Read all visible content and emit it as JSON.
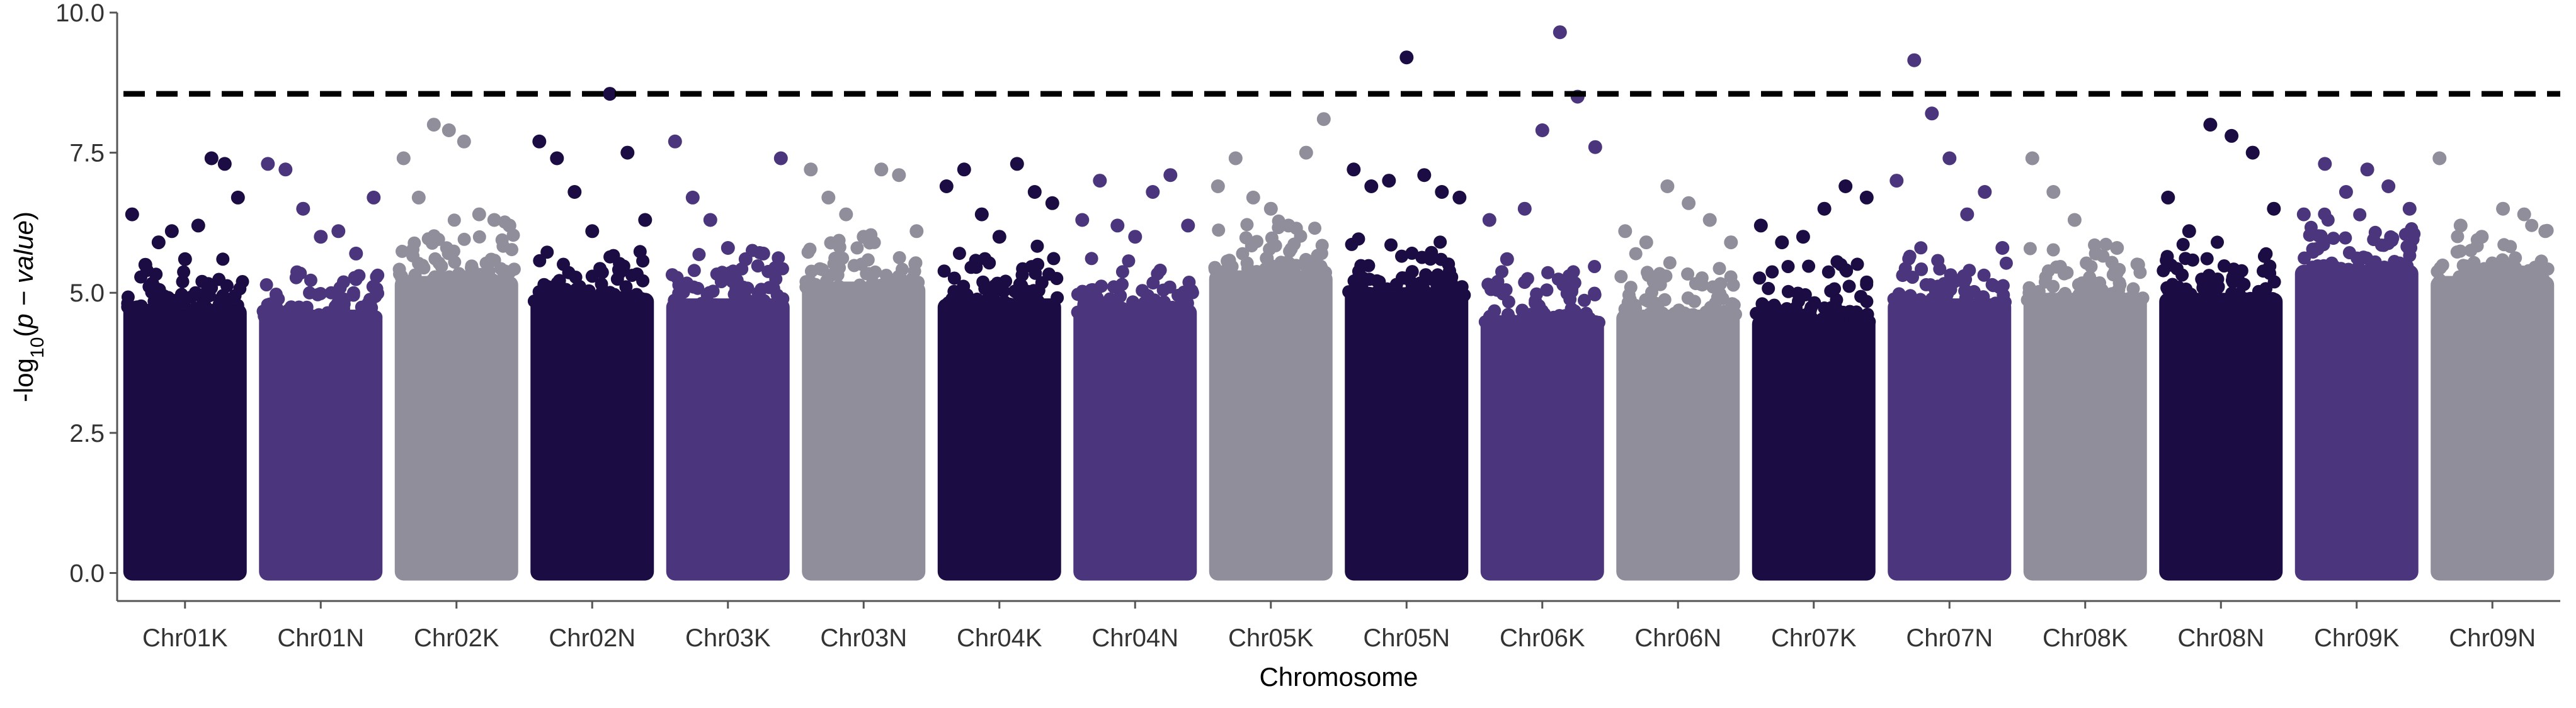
{
  "chart_data": {
    "type": "scatter",
    "subtype": "manhattan",
    "xlabel": "Chromosome",
    "ylabel": "-log10(p − value)",
    "ylabel_parts": {
      "prefix": "-log",
      "subscript": "10",
      "open": "(",
      "italic": "p − value",
      "close": ")"
    },
    "ylim": [
      -0.5,
      10.0
    ],
    "yticks": [
      "0.0",
      "2.5",
      "5.0",
      "7.5",
      "10.0"
    ],
    "threshold": 8.55,
    "grid": false,
    "legend": "none",
    "colors": [
      "#1b0c43",
      "#4b367e",
      "#918e9c"
    ],
    "categories": [
      "Chr01K",
      "Chr01N",
      "Chr02K",
      "Chr02N",
      "Chr03K",
      "Chr03N",
      "Chr04K",
      "Chr04N",
      "Chr05K",
      "Chr05N",
      "Chr06K",
      "Chr06N",
      "Chr07K",
      "Chr07N",
      "Chr08K",
      "Chr08N",
      "Chr09K",
      "Chr09N"
    ],
    "series": [
      {
        "chromosome": "Chr01K",
        "bulk_top": 4.8,
        "peaks": [
          6.4,
          5.5,
          5.9,
          6.1,
          5.6,
          6.2,
          7.4,
          7.3,
          6.7
        ]
      },
      {
        "chromosome": "Chr01N",
        "bulk_top": 4.7,
        "peaks": [
          7.3,
          7.2,
          6.5,
          6.0,
          6.1,
          5.7,
          6.7
        ]
      },
      {
        "chromosome": "Chr02K",
        "bulk_top": 5.3,
        "peaks": [
          7.4,
          6.7,
          8.0,
          7.9,
          7.7,
          6.4,
          6.3,
          6.2
        ]
      },
      {
        "chromosome": "Chr02N",
        "bulk_top": 5.0,
        "peaks": [
          7.7,
          7.4,
          6.8,
          6.1,
          8.55,
          7.5,
          6.3
        ]
      },
      {
        "chromosome": "Chr03K",
        "bulk_top": 4.9,
        "peaks": [
          7.7,
          6.7,
          6.3,
          5.8,
          5.6,
          5.7,
          7.4
        ]
      },
      {
        "chromosome": "Chr03N",
        "bulk_top": 5.2,
        "peaks": [
          7.2,
          6.7,
          6.4,
          6.0,
          7.2,
          7.1,
          6.1
        ]
      },
      {
        "chromosome": "Chr04K",
        "bulk_top": 4.9,
        "peaks": [
          6.9,
          7.2,
          6.4,
          6.0,
          7.3,
          6.8,
          6.6
        ]
      },
      {
        "chromosome": "Chr04N",
        "bulk_top": 4.8,
        "peaks": [
          6.3,
          7.0,
          6.2,
          6.0,
          6.8,
          7.1,
          6.2
        ]
      },
      {
        "chromosome": "Chr05K",
        "bulk_top": 5.4,
        "peaks": [
          6.9,
          7.4,
          6.7,
          6.5,
          6.2,
          7.5,
          8.1
        ]
      },
      {
        "chromosome": "Chr05N",
        "bulk_top": 5.1,
        "peaks": [
          7.2,
          6.9,
          7.0,
          9.2,
          7.1,
          6.8,
          6.7
        ]
      },
      {
        "chromosome": "Chr06K",
        "bulk_top": 4.6,
        "peaks": [
          6.3,
          5.6,
          6.5,
          7.9,
          9.65,
          8.5,
          7.6
        ]
      },
      {
        "chromosome": "Chr06N",
        "bulk_top": 4.7,
        "peaks": [
          6.1,
          5.9,
          6.9,
          6.6,
          6.3,
          5.9
        ]
      },
      {
        "chromosome": "Chr07K",
        "bulk_top": 4.6,
        "peaks": [
          6.2,
          5.9,
          6.0,
          6.5,
          6.9,
          6.7
        ]
      },
      {
        "chromosome": "Chr07N",
        "bulk_top": 4.9,
        "peaks": [
          7.0,
          9.15,
          8.2,
          7.4,
          6.4,
          6.8,
          5.8
        ]
      },
      {
        "chromosome": "Chr08K",
        "bulk_top": 5.0,
        "peaks": [
          7.4,
          6.8,
          6.3,
          5.7,
          5.8,
          5.5
        ]
      },
      {
        "chromosome": "Chr08N",
        "bulk_top": 5.0,
        "peaks": [
          6.7,
          6.1,
          8.0,
          7.8,
          7.5,
          6.5
        ]
      },
      {
        "chromosome": "Chr09K",
        "bulk_top": 5.5,
        "peaks": [
          6.4,
          7.3,
          6.8,
          7.2,
          6.9,
          6.5
        ]
      },
      {
        "chromosome": "Chr09N",
        "bulk_top": 5.3,
        "peaks": [
          7.4,
          6.2,
          6.0,
          6.5,
          6.4,
          6.1
        ]
      }
    ]
  }
}
